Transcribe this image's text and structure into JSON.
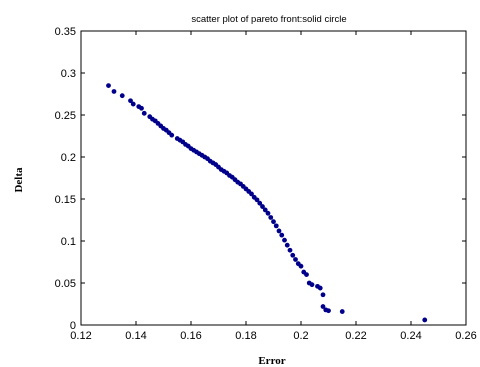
{
  "chart_data": {
    "type": "scatter",
    "title": "scatter plot of pareto front:solid circle",
    "xlabel": "Error",
    "ylabel": "Delta",
    "xlim": [
      0.12,
      0.26
    ],
    "ylim": [
      0,
      0.35
    ],
    "xticks": [
      "0.12",
      "0.14",
      "0.16",
      "0.18",
      "0.2",
      "0.22",
      "0.24",
      "0.26"
    ],
    "yticks": [
      "0",
      "0.05",
      "0.1",
      "0.15",
      "0.2",
      "0.25",
      "0.3",
      "0.35"
    ],
    "grid": false,
    "marker_color": "#00008b",
    "series": [
      {
        "x": [
          0.13,
          0.132,
          0.135,
          0.138,
          0.139,
          0.141,
          0.142,
          0.143,
          0.145,
          0.146,
          0.147,
          0.148,
          0.149,
          0.15,
          0.151,
          0.152,
          0.153,
          0.155,
          0.156,
          0.157,
          0.158,
          0.159,
          0.16,
          0.161,
          0.162,
          0.163,
          0.164,
          0.165,
          0.166,
          0.167,
          0.168,
          0.169,
          0.17,
          0.171,
          0.172,
          0.173,
          0.174,
          0.175,
          0.176,
          0.177,
          0.178,
          0.179,
          0.18,
          0.181,
          0.182,
          0.183,
          0.184,
          0.185,
          0.186,
          0.187,
          0.188,
          0.189,
          0.19,
          0.191,
          0.192,
          0.193,
          0.194,
          0.195,
          0.196,
          0.197,
          0.198,
          0.199,
          0.2,
          0.201,
          0.202,
          0.203,
          0.204,
          0.206,
          0.207,
          0.208,
          0.208,
          0.209,
          0.21,
          0.215,
          0.245
        ],
        "y": [
          0.285,
          0.278,
          0.273,
          0.267,
          0.263,
          0.26,
          0.258,
          0.252,
          0.248,
          0.245,
          0.243,
          0.24,
          0.237,
          0.234,
          0.232,
          0.229,
          0.226,
          0.222,
          0.22,
          0.218,
          0.215,
          0.213,
          0.21,
          0.208,
          0.206,
          0.204,
          0.202,
          0.2,
          0.198,
          0.195,
          0.193,
          0.191,
          0.188,
          0.185,
          0.183,
          0.181,
          0.178,
          0.176,
          0.173,
          0.17,
          0.168,
          0.165,
          0.162,
          0.159,
          0.156,
          0.152,
          0.149,
          0.145,
          0.141,
          0.137,
          0.133,
          0.128,
          0.123,
          0.118,
          0.112,
          0.107,
          0.101,
          0.095,
          0.089,
          0.083,
          0.078,
          0.073,
          0.07,
          0.063,
          0.06,
          0.05,
          0.048,
          0.046,
          0.044,
          0.036,
          0.022,
          0.018,
          0.017,
          0.016,
          0.006
        ]
      }
    ]
  }
}
